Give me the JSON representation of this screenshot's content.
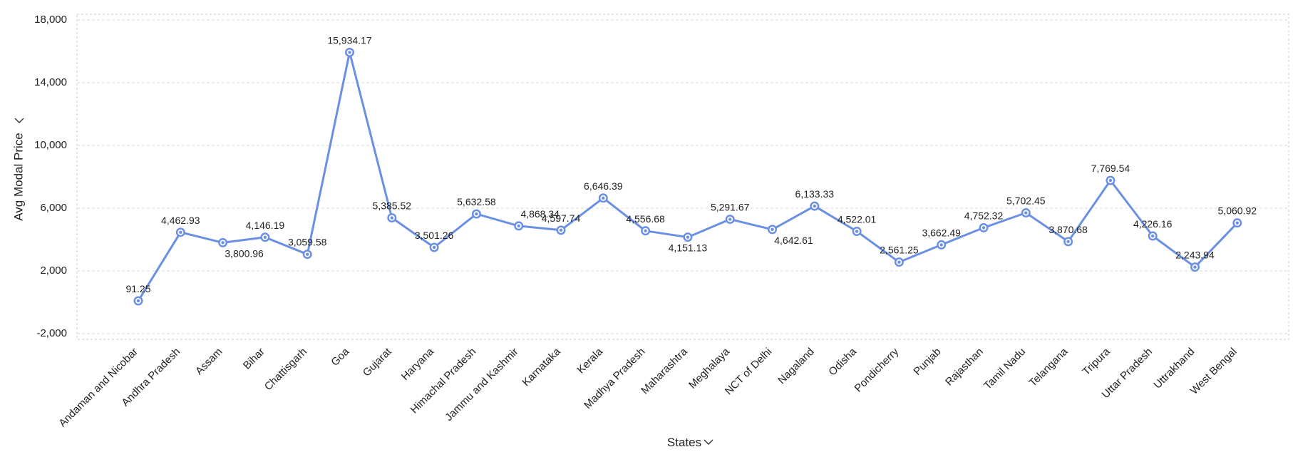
{
  "colors": {
    "line": "#6b8fe3",
    "point_fill": "#6b8fe3",
    "point_ring": "#ffffff",
    "grid": "#d9d9d9",
    "plot_border": "#cccccc",
    "text": "#222222"
  },
  "chart_data": {
    "type": "line",
    "xlabel": "States",
    "ylabel": "Avg Modal Price",
    "axis_dropdown_icon": "chevron-down-icon",
    "ylim": [
      -2000,
      18000
    ],
    "yticks": [
      -2000,
      2000,
      6000,
      10000,
      14000,
      18000
    ],
    "ytick_labels": [
      "-2,000",
      "2,000",
      "6,000",
      "10,000",
      "14,000",
      "18,000"
    ],
    "grid": true,
    "categories": [
      "Andaman and Nicobar",
      "Andhra Pradesh",
      "Assam",
      "Bihar",
      "Chattisgarh",
      "Goa",
      "Gujarat",
      "Haryana",
      "Himachal Pradesh",
      "Jammu and Kashmir",
      "Karnataka",
      "Kerala",
      "Madhya Pradesh",
      "Maharashtra",
      "Meghalaya",
      "NCT of Delhi",
      "Nagaland",
      "Odisha",
      "Pondicherry",
      "Punjab",
      "Rajasthan",
      "Tamil Nadu",
      "Telangana",
      "Tripura",
      "Uttar Pradesh",
      "Uttrakhand",
      "West Bengal"
    ],
    "series": [
      {
        "values": [
          91.25,
          4462.93,
          3800.96,
          4146.19,
          3059.58,
          15934.17,
          5385.52,
          3501.26,
          5632.58,
          4868.34,
          4597.74,
          6646.39,
          4556.68,
          4151.13,
          5291.67,
          4642.61,
          6133.33,
          4522.01,
          2561.25,
          3662.49,
          4752.32,
          5702.45,
          3870.68,
          7769.54,
          4226.16,
          2243.94,
          5060.92
        ],
        "data_labels": [
          "91.25",
          "4,462.93",
          "3,800.96",
          "4,146.19",
          "3,059.58",
          "15,934.17",
          "5,385.52",
          "3,501.26",
          "5,632.58",
          "4,868.34",
          "4,597.74",
          "6,646.39",
          "4,556.68",
          "4,151.13",
          "5,291.67",
          "4,642.61",
          "6,133.33",
          "4,522.01",
          "2,561.25",
          "3,662.49",
          "4,752.32",
          "5,702.45",
          "3,870.68",
          "7,769.54",
          "4,226.16",
          "2,243.94",
          "5,060.92"
        ]
      }
    ]
  }
}
